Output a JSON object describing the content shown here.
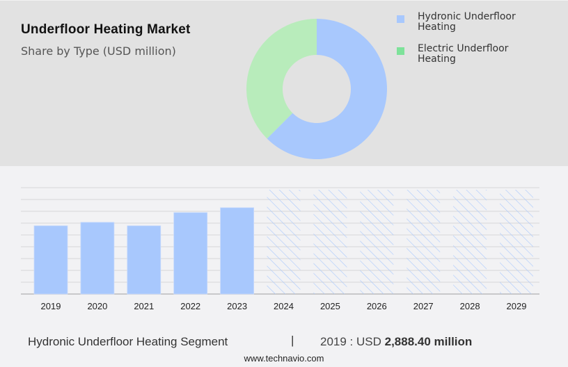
{
  "header": {
    "title": "Underfloor Heating Market",
    "subtitle": "Share by Type (USD million)"
  },
  "legend": {
    "items": [
      {
        "label_line1": "Hydronic Underfloor",
        "label_line2": "Heating",
        "color": "#a8c8fd"
      },
      {
        "label_line1": "Electric Underfloor",
        "label_line2": "Heating",
        "color": "#7ee29a"
      }
    ]
  },
  "footer": {
    "segment": "Hydronic Underfloor Heating Segment",
    "separator": "|",
    "value_prefix": "2019 : USD",
    "value": "2,888.40 million",
    "url": "www.technavio.com"
  },
  "chart_data": [
    {
      "type": "pie",
      "title": "Underfloor Heating Market",
      "subtitle": "Share by Type (USD million)",
      "donut": true,
      "categories": [
        "Hydronic Underfloor Heating",
        "Electric Underfloor Heating"
      ],
      "values": [
        62.5,
        37.5
      ],
      "colors": [
        "#a8c8fd",
        "#b8ecbb"
      ],
      "legend_position": "right"
    },
    {
      "type": "bar",
      "title": "Hydronic Underfloor Heating Segment",
      "categories": [
        "2019",
        "2020",
        "2021",
        "2022",
        "2023",
        "2024",
        "2025",
        "2026",
        "2027",
        "2028",
        "2029"
      ],
      "values": [
        2888.4,
        3035,
        2888,
        3447,
        3653,
        null,
        null,
        null,
        null,
        null,
        null
      ],
      "forecast_years": [
        "2024",
        "2025",
        "2026",
        "2027",
        "2028",
        "2029"
      ],
      "forecast_style": "hatched placeholder (values not shown)",
      "xlabel": "",
      "ylabel": "",
      "ylim": [
        0,
        4500
      ],
      "grid": true,
      "bar_color": "#a8c8fd",
      "annotation": "2019 : USD 2,888.40 million"
    }
  ]
}
